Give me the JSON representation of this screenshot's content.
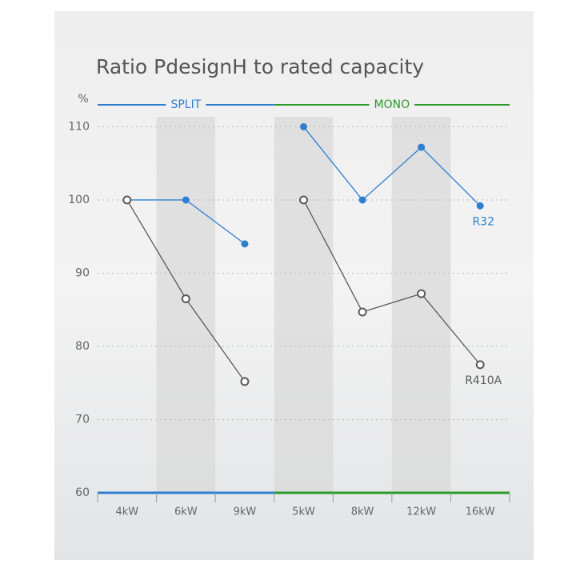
{
  "chart_data": {
    "type": "line",
    "title": "Ratio PdesignH to rated capacity",
    "y_label": "%",
    "categories": [
      "4kW",
      "6kW",
      "9kW",
      "5kW",
      "8kW",
      "12kW",
      "16kW"
    ],
    "groups": [
      {
        "name": "SPLIT",
        "color": "#2f7fd0",
        "size": 3
      },
      {
        "name": "MONO",
        "color": "#2a9a2a",
        "size": 4
      }
    ],
    "series": [
      {
        "name": "R32",
        "color": "#2f7fd0",
        "values": [
          100,
          100,
          94,
          110,
          100,
          107.2,
          99.2
        ]
      },
      {
        "name": "R410A",
        "color": "#5a5a5a",
        "values": [
          100,
          86.5,
          75.2,
          100,
          84.7,
          87.2,
          77.5
        ]
      }
    ],
    "ylim": [
      60,
      113
    ],
    "yticks": [
      60,
      70,
      80,
      90,
      100,
      110
    ],
    "grid": true
  }
}
